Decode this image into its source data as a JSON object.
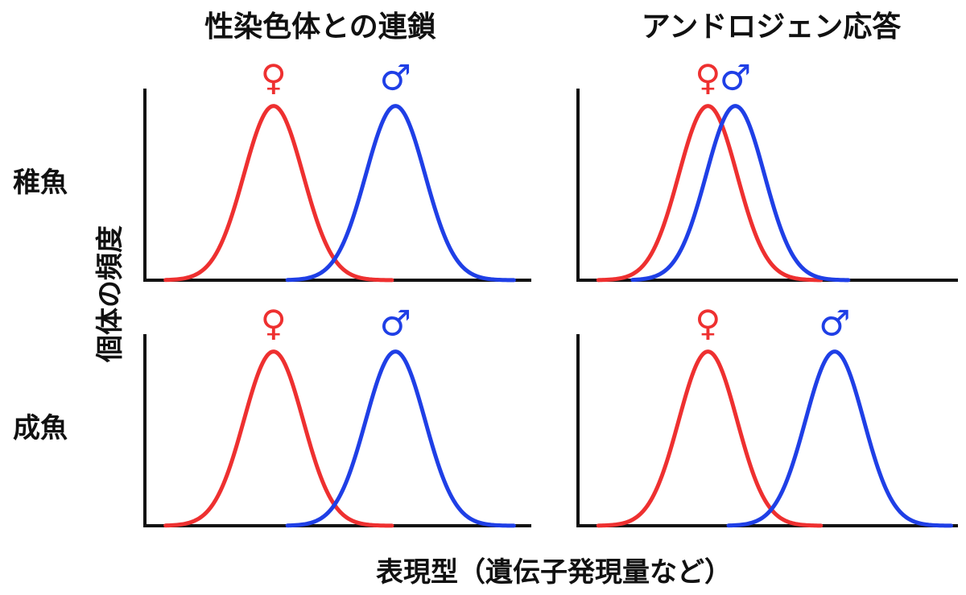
{
  "columns": [
    "性染色体との連鎖",
    "アンドロジェン応答"
  ],
  "rows": [
    "稚魚",
    "成魚"
  ],
  "y_axis_label": "個体の頻度",
  "x_axis_label": "表現型（遺伝子発現量など）",
  "colors": {
    "female": "#ee3030",
    "male": "#1f3fe6",
    "axis": "#111111"
  },
  "chart_data": [
    {
      "type": "line",
      "column": "性染色体との連鎖",
      "row": "稚魚",
      "series": [
        {
          "symbol": "♀",
          "color": "#ee3030",
          "mean": 3.6,
          "sd": 0.85,
          "range": [
            0.5,
            7.0
          ]
        },
        {
          "symbol": "♂",
          "color": "#1f3fe6",
          "mean": 7.1,
          "sd": 0.85,
          "range": [
            4.0,
            10.5
          ]
        }
      ],
      "xlim": [
        0,
        11
      ],
      "ylim": [
        0,
        1.1
      ]
    },
    {
      "type": "line",
      "column": "アンドロジェン応答",
      "row": "稚魚",
      "series": [
        {
          "symbol": "♀",
          "color": "#ee3030",
          "mean": 3.7,
          "sd": 0.85,
          "range": [
            0.5,
            7.0
          ]
        },
        {
          "symbol": "♂",
          "color": "#1f3fe6",
          "mean": 4.5,
          "sd": 0.85,
          "range": [
            1.5,
            7.8
          ]
        }
      ],
      "xlim": [
        0,
        11
      ],
      "ylim": [
        0,
        1.1
      ]
    },
    {
      "type": "line",
      "column": "性染色体との連鎖",
      "row": "成魚",
      "series": [
        {
          "symbol": "♀",
          "color": "#ee3030",
          "mean": 3.6,
          "sd": 0.85,
          "range": [
            0.5,
            7.0
          ]
        },
        {
          "symbol": "♂",
          "color": "#1f3fe6",
          "mean": 7.1,
          "sd": 0.85,
          "range": [
            4.0,
            10.5
          ]
        }
      ],
      "xlim": [
        0,
        11
      ],
      "ylim": [
        0,
        1.1
      ]
    },
    {
      "type": "line",
      "column": "アンドロジェン応答",
      "row": "成魚",
      "series": [
        {
          "symbol": "♀",
          "color": "#ee3030",
          "mean": 3.7,
          "sd": 0.85,
          "range": [
            0.5,
            7.0
          ]
        },
        {
          "symbol": "♂",
          "color": "#1f3fe6",
          "mean": 7.4,
          "sd": 0.85,
          "range": [
            4.3,
            10.8
          ]
        }
      ],
      "xlim": [
        0,
        11
      ],
      "ylim": [
        0,
        1.1
      ]
    }
  ]
}
